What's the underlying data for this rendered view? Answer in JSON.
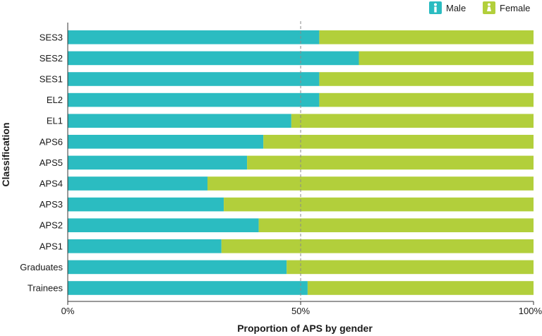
{
  "chart_data": {
    "type": "bar",
    "orientation": "horizontal",
    "stacked": true,
    "normalized": true,
    "categories": [
      "SES3",
      "SES2",
      "SES1",
      "EL2",
      "EL1",
      "APS6",
      "APS5",
      "APS4",
      "APS3",
      "APS2",
      "APS1",
      "Graduates",
      "Trainees"
    ],
    "series": [
      {
        "name": "Male",
        "color": "#2bbcc1",
        "icon": "male-person-icon",
        "values": [
          54,
          62.5,
          54,
          54,
          48,
          42,
          38.5,
          30,
          33.5,
          41,
          33,
          47,
          51.5
        ]
      },
      {
        "name": "Female",
        "color": "#b2cf3b",
        "icon": "female-person-icon",
        "values": [
          46,
          37.5,
          46,
          46,
          52,
          58,
          61.5,
          70,
          66.5,
          59,
          67,
          53,
          48.5
        ]
      }
    ],
    "xlabel": "Proportion of APS by gender",
    "ylabel": "Classification",
    "xlim": [
      0,
      100
    ],
    "x_ticks": [
      {
        "value": 0,
        "label": "0%"
      },
      {
        "value": 50,
        "label": "50%"
      },
      {
        "value": 100,
        "label": "100%"
      }
    ],
    "reference_line": 50,
    "legend_position": "top-right"
  }
}
